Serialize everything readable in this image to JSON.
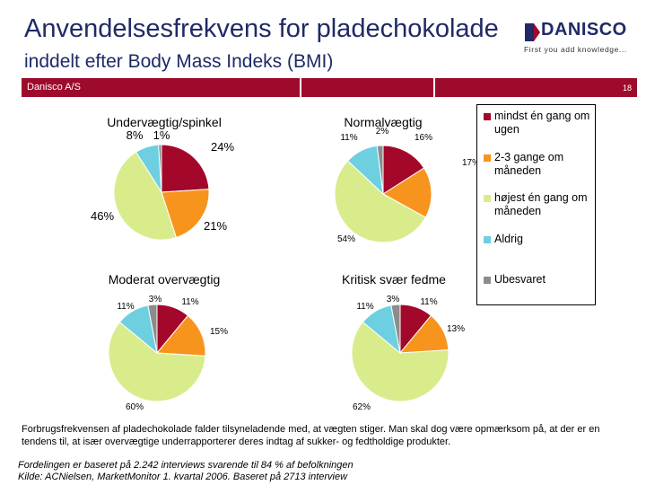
{
  "header": {
    "title": "Anvendelsesfrekvens for pladechokolade",
    "subtitle": "inddelt efter Body Mass Indeks (BMI)",
    "logo_name": "DANISCO",
    "logo_tagline": "First you add knowledge...",
    "bar_left": "Danisco A/S",
    "slide_number": "18"
  },
  "colors": {
    "bar": "#9e0a2c",
    "title": "#1f2a66",
    "mindst": "#a3072a",
    "gange23": "#f7941d",
    "hojest": "#d9ec8c",
    "aldrig": "#6dcfe0",
    "ubesvaret": "#8c8c8c"
  },
  "chart_data": [
    {
      "type": "pie",
      "title": "Undervægtig/spinkel",
      "slices": [
        {
          "label": "mindst én gang om ugen",
          "value": 24,
          "text": "24%"
        },
        {
          "label": "2-3 gange om måneden",
          "value": 21,
          "text": "21%"
        },
        {
          "label": "højest én gang om måneden",
          "value": 46,
          "text": "46%"
        },
        {
          "label": "Aldrig",
          "value": 8,
          "text": "8%"
        },
        {
          "label": "Ubesvaret",
          "value": 1,
          "text": "1%"
        }
      ]
    },
    {
      "type": "pie",
      "title": "Normalvægtig",
      "slices": [
        {
          "label": "mindst én gang om ugen",
          "value": 16,
          "text": "16%"
        },
        {
          "label": "2-3 gange om måneden",
          "value": 17,
          "text": "17%"
        },
        {
          "label": "højest én gang om måneden",
          "value": 54,
          "text": "54%"
        },
        {
          "label": "Aldrig",
          "value": 11,
          "text": "11%"
        },
        {
          "label": "Ubesvaret",
          "value": 2,
          "text": "2%"
        }
      ]
    },
    {
      "type": "pie",
      "title": "Moderat overvægtig",
      "slices": [
        {
          "label": "mindst én gang om ugen",
          "value": 11,
          "text": "11%"
        },
        {
          "label": "2-3 gange om måneden",
          "value": 15,
          "text": "15%"
        },
        {
          "label": "højest én gang om måneden",
          "value": 60,
          "text": "60%"
        },
        {
          "label": "Aldrig",
          "value": 11,
          "text": "11%"
        },
        {
          "label": "Ubesvaret",
          "value": 3,
          "text": "3%"
        }
      ]
    },
    {
      "type": "pie",
      "title": "Kritisk svær fedme",
      "slices": [
        {
          "label": "mindst én gang om ugen",
          "value": 11,
          "text": "11%"
        },
        {
          "label": "2-3 gange om måneden",
          "value": 13,
          "text": "13%"
        },
        {
          "label": "højest én gang om måneden",
          "value": 62,
          "text": "62%"
        },
        {
          "label": "Aldrig",
          "value": 11,
          "text": "11%"
        },
        {
          "label": "Ubesvaret",
          "value": 3,
          "text": "3%"
        }
      ]
    }
  ],
  "legend": [
    {
      "label": "mindst én gang om ugen",
      "color": "#a3072a"
    },
    {
      "label": "2-3 gange om måneden",
      "color": "#f7941d"
    },
    {
      "label": "højest én gang om måneden",
      "color": "#d9ec8c"
    },
    {
      "label": "Aldrig",
      "color": "#6dcfe0"
    },
    {
      "label": "Ubesvaret",
      "color": "#8c8c8c"
    }
  ],
  "footer": {
    "note": "Forbrugsfrekvensen af pladechokolade falder tilsyneladende med, at vægten stiger. Man skal dog være opmærksom på, at der er en tendens til, at især overvægtige underrapporterer deres indtag af sukker- og fedtholdige produkter.",
    "source_line1": "Fordelingen er baseret på 2.242 interviews svarende til 84 % af befolkningen",
    "source_line2": "Kilde: ACNielsen, MarketMonitor 1. kvartal 2006. Baseret på 2713 interview"
  }
}
